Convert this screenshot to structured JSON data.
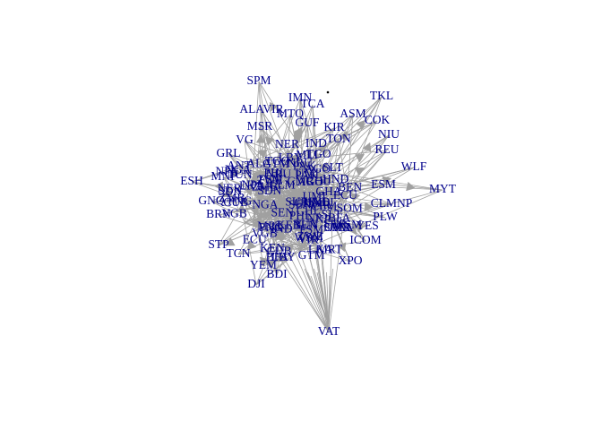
{
  "graph": {
    "type": "network",
    "edge_color": "#a0a0a0",
    "label_color": "#00008b",
    "background": "#ffffff",
    "nodes": [
      "SPM",
      "IMN",
      "TCA",
      "ALA",
      "VIR",
      "MTQ",
      "TKL",
      "ASM",
      "COK",
      "NIU",
      "MSR",
      "GUF",
      "KIR",
      "VGB",
      "ANT",
      "TON",
      "GRL",
      "REU",
      "ESH",
      "MNP",
      "ESM",
      "WLF",
      "MYT",
      "GNQ",
      "BRN",
      "CLM",
      "NP",
      "PLW",
      "STP",
      "TCN",
      "SLT",
      "ICOM",
      "YEM",
      "PNG",
      "IND",
      "DJI",
      "VAT",
      "BDI",
      "UMI",
      "CUB",
      "WSM",
      "CHL",
      "FSM",
      "HND",
      "TUN",
      "NRU",
      "SOM",
      "LKA",
      "NPL",
      "SUR",
      "TGO",
      "ZWE",
      "GTM",
      "LBY",
      "PHL",
      "SDN",
      "NGA",
      "PAK",
      "ECU",
      "BFA",
      "GHA",
      "KEN",
      "BEN",
      "AGO",
      "CMR",
      "ZMB",
      "MRT",
      "NER",
      "MLI",
      "SEN"
    ],
    "labels": [
      "SPM",
      "IMN",
      "TCA",
      "ALAVIR",
      "MTQ",
      "TKL",
      "ASM",
      "COK",
      "NIU",
      "MSR",
      "GUF",
      "KIR",
      "VG",
      "ANT",
      "TON",
      "GRL",
      "REU",
      "ESH",
      "MNP",
      "ESM",
      "WLF",
      "MYT",
      "GNQ",
      "BRN",
      "CLMNP",
      "PLW",
      "STP",
      "TCN",
      "ICOM",
      "YEM",
      "DJI",
      "VAT",
      "BDI",
      "XPO",
      "YES"
    ]
  }
}
